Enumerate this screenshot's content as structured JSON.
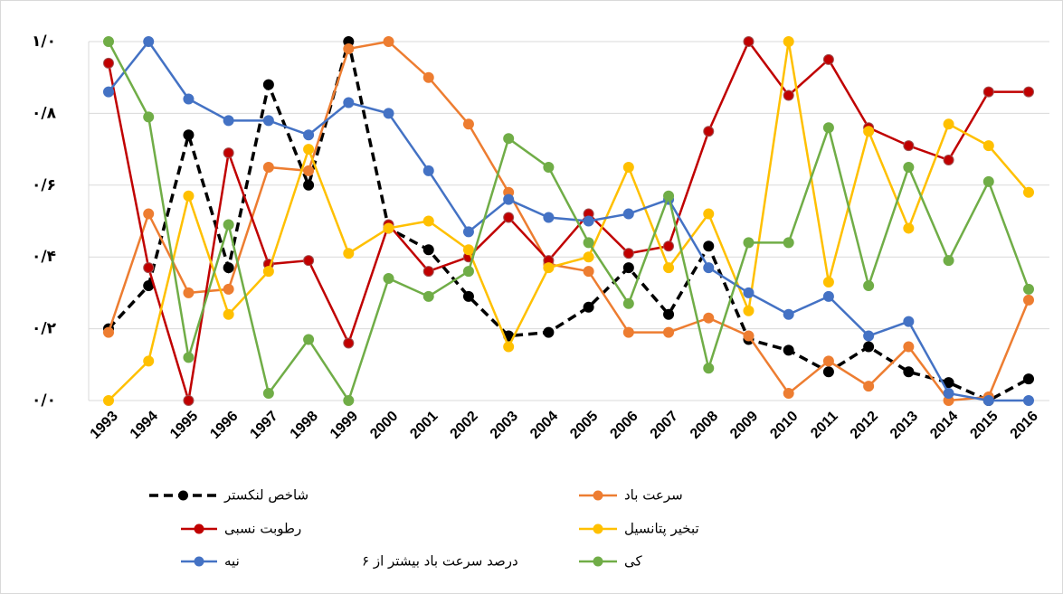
{
  "chart_data": {
    "type": "line",
    "categories": [
      "1993",
      "1994",
      "1995",
      "1996",
      "1997",
      "1998",
      "1999",
      "2000",
      "2001",
      "2002",
      "2003",
      "2004",
      "2005",
      "2006",
      "2007",
      "2008",
      "2009",
      "2010",
      "2011",
      "2012",
      "2013",
      "2014",
      "2015",
      "2016"
    ],
    "ylim": [
      0,
      1
    ],
    "yticks": [
      {
        "value": 0,
        "label": "٠/٠"
      },
      {
        "value": 0.2,
        "label": "٠/٢"
      },
      {
        "value": 0.4,
        "label": "٠/۴"
      },
      {
        "value": 0.6,
        "label": "٠/۶"
      },
      {
        "value": 0.8,
        "label": "٠/٨"
      },
      {
        "value": 1,
        "label": "١/٠"
      }
    ],
    "grid": true,
    "annotation": "درصد سرعت باد بیشتر از ۶",
    "series": [
      {
        "name": "شاخص لنکستر",
        "color": "#000000",
        "dashed": true,
        "values": [
          0.2,
          0.32,
          0.74,
          0.37,
          0.88,
          0.6,
          1.0,
          0.48,
          0.42,
          0.29,
          0.18,
          0.19,
          0.26,
          0.37,
          0.24,
          0.43,
          0.17,
          0.14,
          0.08,
          0.15,
          0.08,
          0.05,
          0.0,
          0.06
        ]
      },
      {
        "name": "سرعت باد",
        "color": "#ed7d31",
        "values": [
          0.19,
          0.52,
          0.3,
          0.31,
          0.65,
          0.64,
          0.98,
          1.0,
          0.9,
          0.77,
          0.58,
          0.38,
          0.36,
          0.19,
          0.19,
          0.23,
          0.18,
          0.02,
          0.11,
          0.04,
          0.15,
          0.0,
          0.01,
          0.28
        ]
      },
      {
        "name": "رطوبت نسبی",
        "color": "#c00000",
        "values": [
          0.94,
          0.37,
          0.0,
          0.69,
          0.38,
          0.39,
          0.16,
          0.49,
          0.36,
          0.4,
          0.51,
          0.39,
          0.52,
          0.41,
          0.43,
          0.75,
          1.0,
          0.85,
          0.95,
          0.76,
          0.71,
          0.67,
          0.86,
          0.86
        ]
      },
      {
        "name": "تبخیر پتانسیل",
        "color": "#ffc000",
        "values": [
          0.0,
          0.11,
          0.57,
          0.24,
          0.36,
          0.7,
          0.41,
          0.48,
          0.5,
          0.42,
          0.15,
          0.37,
          0.4,
          0.65,
          0.37,
          0.52,
          0.25,
          1.0,
          0.33,
          0.75,
          0.48,
          0.77,
          0.71,
          0.58
        ]
      },
      {
        "name": "نیه",
        "color": "#4472c4",
        "values": [
          0.86,
          1.0,
          0.84,
          0.78,
          0.78,
          0.74,
          0.83,
          0.8,
          0.64,
          0.47,
          0.56,
          0.51,
          0.5,
          0.52,
          0.56,
          0.37,
          0.3,
          0.24,
          0.29,
          0.18,
          0.22,
          0.02,
          0.0,
          0.0
        ]
      },
      {
        "name": "کی",
        "color": "#70ad47",
        "values": [
          1.0,
          0.79,
          0.12,
          0.49,
          0.02,
          0.17,
          0.0,
          0.34,
          0.29,
          0.36,
          0.73,
          0.65,
          0.44,
          0.27,
          0.57,
          0.09,
          0.44,
          0.44,
          0.76,
          0.32,
          0.65,
          0.39,
          0.61,
          0.31
        ]
      }
    ]
  }
}
